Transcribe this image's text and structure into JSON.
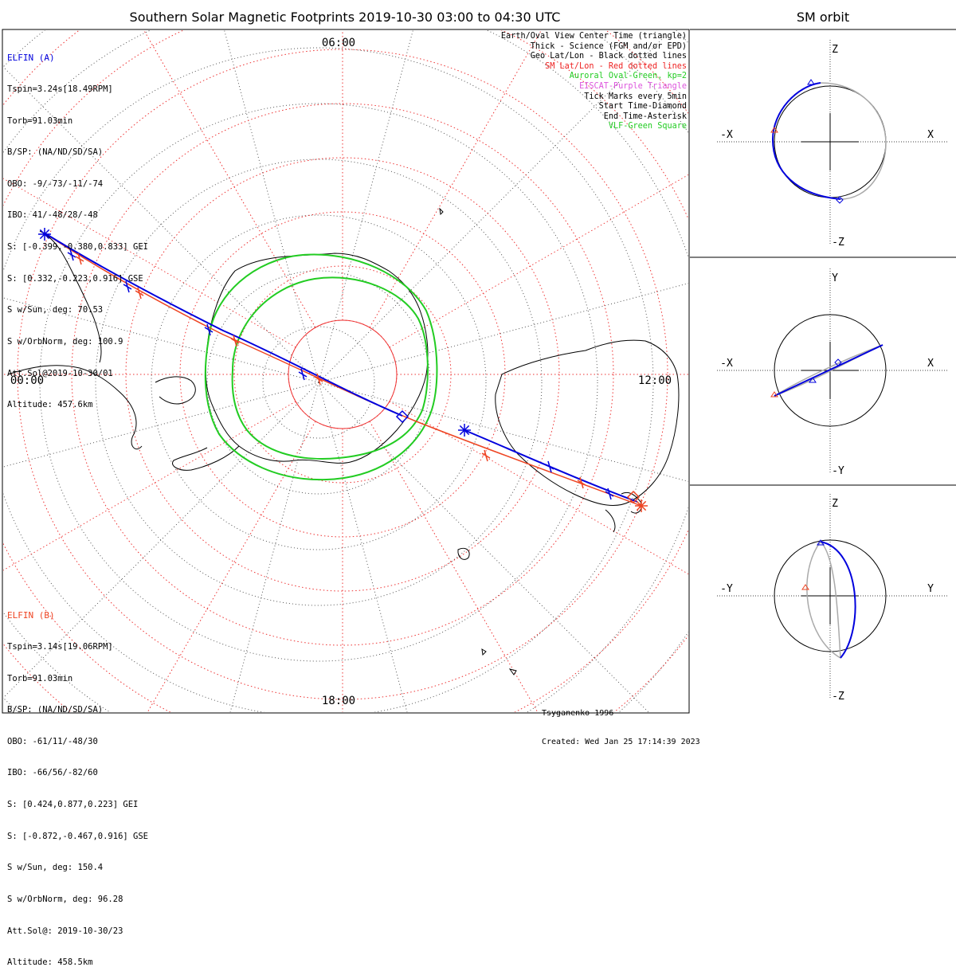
{
  "title": "Southern Solar Magnetic Footprints 2019-10-30 03:00 to 04:30 UTC",
  "orbit_title": "SM orbit",
  "colors": {
    "elfin_a": "#0000dd",
    "elfin_b": "#ee4422",
    "oval": "#22cc22",
    "eiscat": "#dd55dd",
    "grid_red": "#ee3333",
    "grid_black": "#555555",
    "gray_track": "#aaaaaa"
  },
  "elfin_a": {
    "name": "ELFIN (A)",
    "lines": [
      "Tspin=3.24s[18.49RPM]",
      "Torb=91.03min",
      "B/SP: (NA/ND/SD/SA)",
      "OBO: -9/-73/-11/-74",
      "IBO: 41/-48/28/-48",
      "S: [-0.399,-0.380,0.833] GEI",
      "S: [0.332,-0.223,0.916] GSE",
      "S w/Sun, deg: 70.53",
      "S w/OrbNorm, deg: 100.9",
      "Att.Sol@2019-10-30/01",
      "Altitude: 457.6km"
    ]
  },
  "elfin_b": {
    "name": "ELFIN (B)",
    "lines": [
      "Tspin=3.14s[19.06RPM]",
      "Torb=91.03min",
      "B/SP: (NA/ND/SD/SA)",
      "OBO: -61/11/-48/30",
      "IBO: -66/56/-82/60",
      "S: [0.424,0.877,0.223] GEI",
      "S: [-0.872,-0.467,0.916] GSE",
      "S w/Sun, deg: 150.4",
      "S w/OrbNorm, deg: 96.28",
      "Att.Sol@: 2019-10-30/23",
      "Altitude: 458.5km"
    ]
  },
  "legend": [
    {
      "text": "Earth/Oval View Center Time (triangle)",
      "color": "#000000"
    },
    {
      "text": "Thick - Science (FGM and/or EPD)",
      "color": "#000000"
    },
    {
      "text": "Geo Lat/Lon - Black dotted lines",
      "color": "#000000"
    },
    {
      "text": "SM Lat/Lon - Red dotted lines",
      "color": "#ee2222"
    },
    {
      "text": "Auroral Oval-Green, kp=2",
      "color": "#22cc22"
    },
    {
      "text": "EISCAT-Purple Triangle",
      "color": "#dd55dd"
    },
    {
      "text": "Tick Marks every 5min",
      "color": "#000000"
    },
    {
      "text": "Start Time-Diamond",
      "color": "#000000"
    },
    {
      "text": "End Time-Asterisk",
      "color": "#000000"
    },
    {
      "text": "VLF-Green Square",
      "color": "#22cc22"
    }
  ],
  "mlt_labels": {
    "top": "06:00",
    "left": "00:00",
    "right": "12:00",
    "bottom": "18:00"
  },
  "credit": [
    "Tsyganenko-1996",
    "Created: Wed Jan 25 17:14:39 2023"
  ],
  "orbit_panels": [
    {
      "x_neg": "-X",
      "x_pos": "X",
      "y_pos": "Z",
      "y_neg": "-Z"
    },
    {
      "x_neg": "-X",
      "x_pos": "X",
      "y_pos": "Y",
      "y_neg": "-Y"
    },
    {
      "x_neg": "-Y",
      "x_pos": "Y",
      "y_pos": "Z",
      "y_neg": "-Z"
    }
  ],
  "chart_data": {
    "type": "polar_map",
    "title": "Southern Solar Magnetic Footprints 2019-10-30 03:00 to 04:30 UTC",
    "axis_labels_mlt": [
      "06:00",
      "00:00",
      "12:00",
      "18:00"
    ],
    "series": [
      {
        "name": "ELFIN (A)"
      },
      {
        "name": "ELFIN (B)"
      },
      {
        "name": "Auroral Oval-Green, kp=2"
      }
    ]
  }
}
